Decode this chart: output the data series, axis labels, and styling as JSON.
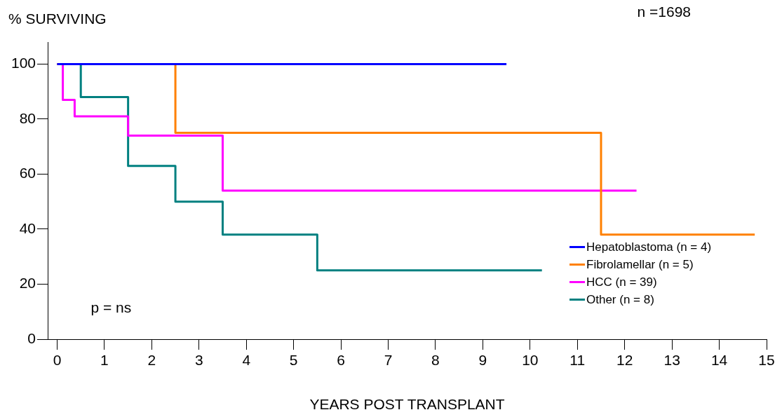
{
  "chart_data": {
    "type": "step",
    "ylabel": "% SURVIVING",
    "xlabel": "YEARS POST TRANSPLANT",
    "annotations": [
      "n =1698",
      "p = ns"
    ],
    "xlim": [
      -0.2,
      15
    ],
    "xticks": [
      0,
      1,
      2,
      3,
      4,
      5,
      6,
      7,
      8,
      9,
      10,
      11,
      12,
      13,
      14,
      15
    ],
    "ylim": [
      0,
      108
    ],
    "yticks": [
      0,
      20,
      40,
      60,
      80,
      100
    ],
    "grid": false,
    "legend": "bottom right",
    "marker": "none",
    "line_style": "solid",
    "series": [
      {
        "name": "Hepatoblastoma (n = 4)",
        "color": "#0000ff",
        "x": [
          0,
          9.5
        ],
        "values": [
          100,
          100
        ]
      },
      {
        "name": "Fibrolamellar (n = 5)",
        "color": "#ff8000",
        "x": [
          0,
          2.5,
          11.5,
          14.75
        ],
        "values": [
          100,
          75,
          38,
          38
        ]
      },
      {
        "name": "HCC (n = 39)",
        "color": "#ff00ff",
        "x": [
          0,
          0.12,
          0.37,
          1.5,
          3.5,
          12.25
        ],
        "values": [
          100,
          87,
          81,
          74,
          54,
          54
        ]
      },
      {
        "name": "Other (n = 8)",
        "color": "#008080",
        "x": [
          0,
          0.5,
          1.5,
          2.5,
          3.5,
          5.5,
          10.25
        ],
        "values": [
          100,
          88,
          63,
          50,
          38,
          25,
          25
        ]
      }
    ]
  }
}
